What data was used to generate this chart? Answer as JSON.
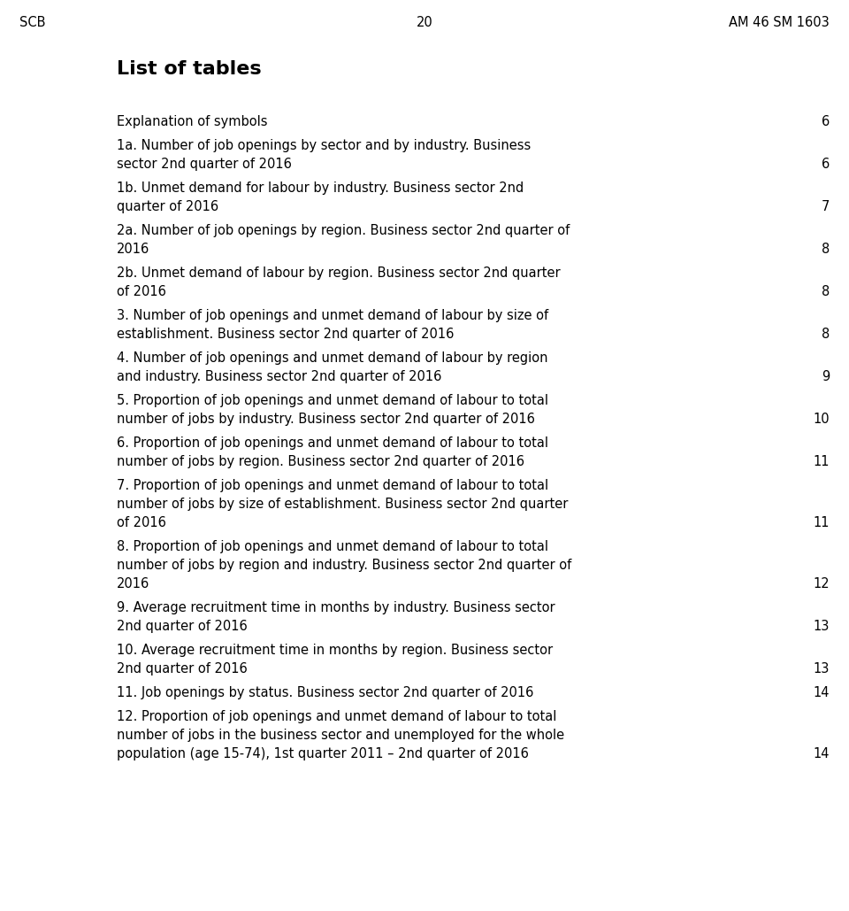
{
  "header_left": "SCB",
  "header_center": "20",
  "header_right": "AM 46 SM 1603",
  "title": "List of tables",
  "background_color": "#ffffff",
  "text_color": "#000000",
  "entries": [
    {
      "lines": [
        "Explanation of symbols"
      ],
      "page": "6"
    },
    {
      "lines": [
        "1a. Number of job openings by sector and by industry. Business",
        "sector 2nd quarter of 2016"
      ],
      "page": "6"
    },
    {
      "lines": [
        "1b. Unmet demand for labour by industry. Business sector 2nd",
        "quarter of 2016"
      ],
      "page": "7"
    },
    {
      "lines": [
        "2a. Number of job openings by region. Business sector 2nd quarter of",
        "2016"
      ],
      "page": "8"
    },
    {
      "lines": [
        "2b. Unmet demand of labour by region. Business sector 2nd quarter",
        "of 2016"
      ],
      "page": "8"
    },
    {
      "lines": [
        "3. Number of job openings and unmet demand of labour by size of",
        "establishment. Business sector 2nd quarter of 2016"
      ],
      "page": "8"
    },
    {
      "lines": [
        "4. Number of job openings and unmet demand of labour by region",
        "and industry. Business sector 2nd quarter of 2016"
      ],
      "page": "9"
    },
    {
      "lines": [
        "5. Proportion of job openings and unmet demand of labour to total",
        "number of jobs by industry. Business sector 2nd quarter of 2016"
      ],
      "page": "10"
    },
    {
      "lines": [
        "6. Proportion of job openings and unmet demand of labour to total",
        "number of jobs by region. Business sector 2nd quarter of 2016"
      ],
      "page": "11"
    },
    {
      "lines": [
        "7. Proportion of job openings and unmet demand of labour to total",
        "number of jobs by size of establishment. Business sector 2nd quarter",
        "of 2016"
      ],
      "page": "11"
    },
    {
      "lines": [
        "8. Proportion of job openings and unmet demand of labour to total",
        "number of jobs by region and industry. Business sector 2nd quarter of",
        "2016"
      ],
      "page": "12"
    },
    {
      "lines": [
        "9. Average recruitment time in months by industry. Business sector",
        "2nd quarter of 2016"
      ],
      "page": "13"
    },
    {
      "lines": [
        "10. Average recruitment time in months by region. Business sector",
        "2nd quarter of 2016"
      ],
      "page": "13"
    },
    {
      "lines": [
        "11. Job openings by status. Business sector 2nd quarter of 2016"
      ],
      "page": "14"
    },
    {
      "lines": [
        "12. Proportion of job openings and unmet demand of labour to total",
        "number of jobs in the business sector and unemployed for the whole",
        "population (age 15-74), 1st quarter 2011 – 2nd quarter of 2016"
      ],
      "page": "14"
    }
  ],
  "header_fontsize": 10.5,
  "title_fontsize": 16,
  "entry_fontsize": 10.5,
  "page_num_fontsize": 10.5
}
